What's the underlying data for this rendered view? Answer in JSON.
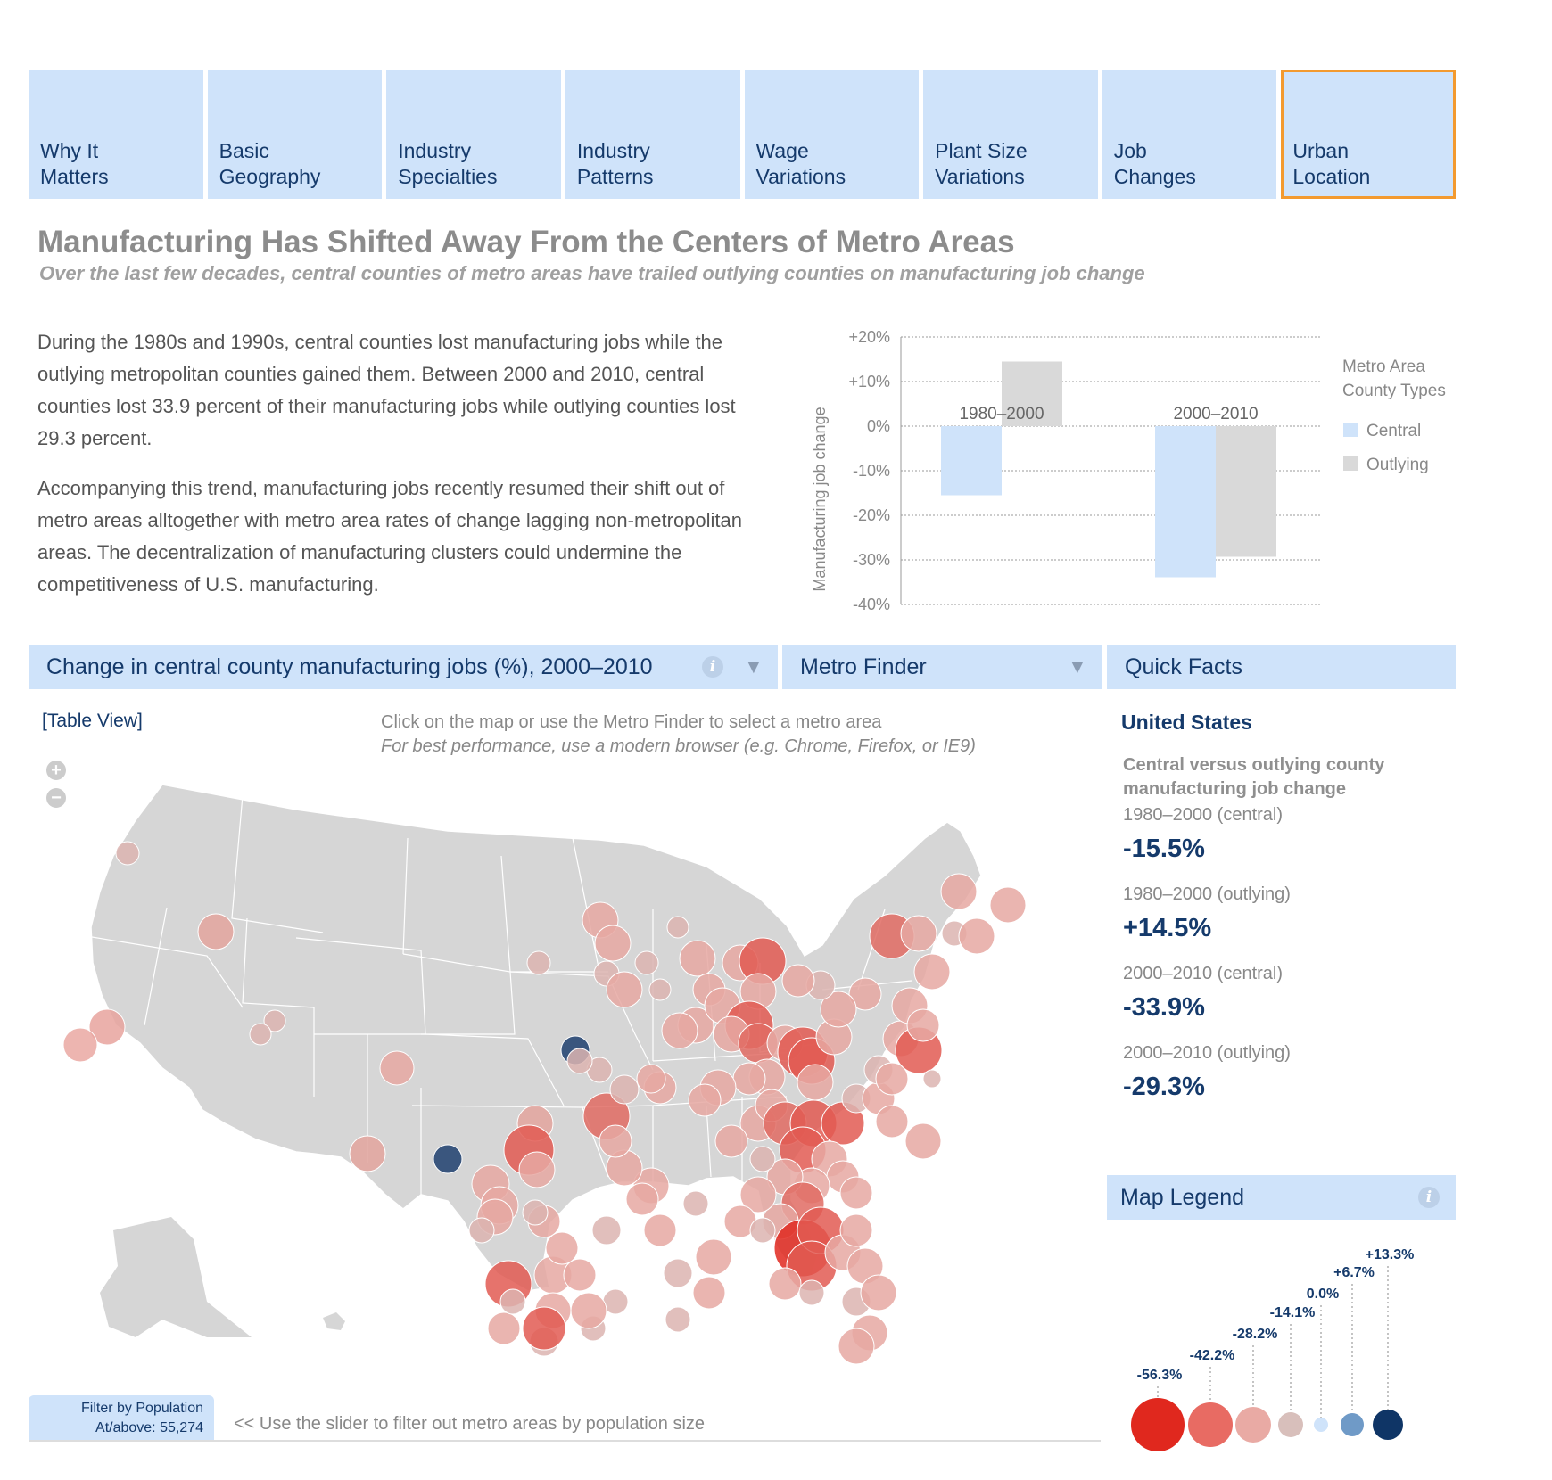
{
  "tabs": [
    {
      "label": "Why It\nMatters",
      "active": false
    },
    {
      "label": "Basic\nGeography",
      "active": false
    },
    {
      "label": "Industry\nSpecialties",
      "active": false
    },
    {
      "label": "Industry\nPatterns",
      "active": false
    },
    {
      "label": "Wage\nVariations",
      "active": false
    },
    {
      "label": "Plant Size\nVariations",
      "active": false
    },
    {
      "label": "Job\nChanges",
      "active": false
    },
    {
      "label": "Urban\nLocation",
      "active": true
    }
  ],
  "title": "Manufacturing Has Shifted Away From the Centers of Metro Areas",
  "subtitle": "Over the last few decades, central counties of metro areas have trailed outlying counties on manufacturing job change",
  "intro": {
    "p1": "During the 1980s and 1990s, central counties lost manufacturing jobs while the outlying metropolitan counties gained them. Between 2000 and 2010, central counties lost 33.9 percent of their manufacturing jobs while outlying counties lost 29.3 percent.",
    "p2": "Accompanying this trend, manufacturing jobs recently resumed their shift out of metro areas alltogether with metro area rates of change lagging non-metropolitan areas. The decentralization of manufacturing clusters could undermine the competitiveness of U.S. manufacturing."
  },
  "chart_data": {
    "type": "bar",
    "categories": [
      "1980–2000",
      "2000–2010"
    ],
    "series": [
      {
        "name": "Central",
        "values": [
          -15.5,
          -33.9
        ],
        "color": "#cfe3fa"
      },
      {
        "name": "Outlying",
        "values": [
          14.5,
          -29.3
        ],
        "color": "#d9d9d9"
      }
    ],
    "ylabel": "Manufacturing job change",
    "yticks": [
      "+20%",
      "+10%",
      "0%",
      "-10%",
      "-20%",
      "-30%",
      "-40%"
    ],
    "ylim": [
      -40,
      20
    ],
    "legend_title": "Metro Area County Types",
    "legend_placement": "right",
    "grid": true
  },
  "map_section": {
    "metric_label": "Change in central county manufacturing jobs (%), 2000–2010",
    "finder_label": "Metro Finder",
    "facts_label": "Quick Facts",
    "dropdown_arrow": "▼",
    "info_glyph": "i",
    "table_view": "[Table View]",
    "instruction": "Click on the map or use the Metro Finder to select a metro area",
    "note": "For best performance, use a modern browser (e.g. Chrome, Firefox, or IE9)",
    "zoom_in": "+",
    "zoom_out": "−"
  },
  "filter": {
    "label": "Filter by Population",
    "value": "At/above: 55,274",
    "hint": "<< Use the slider to filter out metro areas by population size"
  },
  "quick_facts": {
    "region": "United States",
    "subhead": "Central versus outlying county manufacturing job change",
    "items": [
      {
        "label": "1980–2000 (central)",
        "value": "-15.5%"
      },
      {
        "label": "1980–2000 (outlying)",
        "value": "+14.5%"
      },
      {
        "label": "2000–2010 (central)",
        "value": "-33.9%"
      },
      {
        "label": "2000–2010 (outlying)",
        "value": "-29.3%"
      }
    ]
  },
  "map_legend": {
    "title": "Map Legend",
    "items": [
      {
        "label": "-56.3%",
        "color": "#e0281e"
      },
      {
        "label": "-42.2%",
        "color": "#e86b63"
      },
      {
        "label": "-28.2%",
        "color": "#e9aaa4"
      },
      {
        "label": "-14.1%",
        "color": "#d8bfbb"
      },
      {
        "label": "0.0%",
        "color": "#cfe3fa"
      },
      {
        "label": "+6.7%",
        "color": "#6f9ac7"
      },
      {
        "label": "+13.3%",
        "color": "#0f3566"
      }
    ]
  }
}
